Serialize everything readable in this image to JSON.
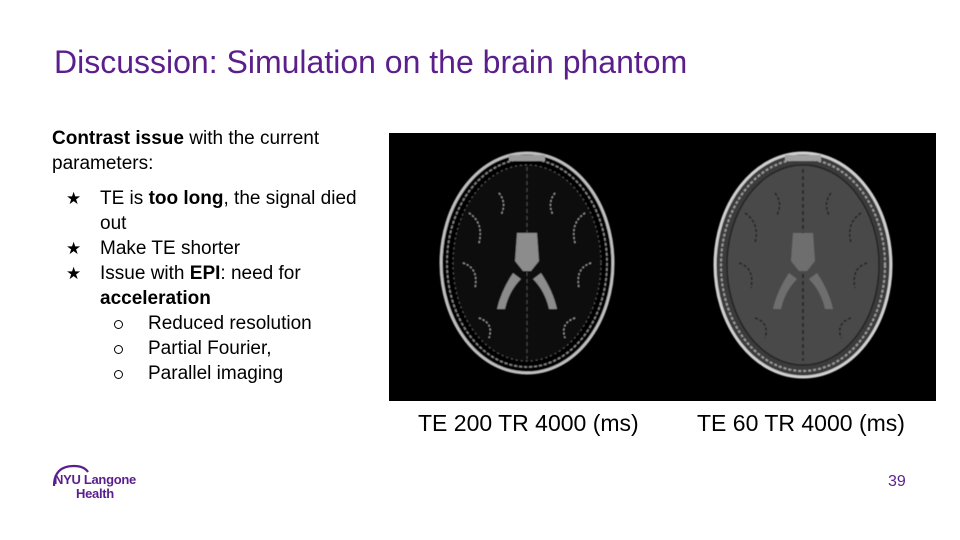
{
  "slide": {
    "title": "Discussion: Simulation on the brain phantom",
    "page_number": "39"
  },
  "content": {
    "intro_bold": "Contrast issue",
    "intro_rest": " with the current parameters:",
    "bullets": [
      {
        "pre": "TE is ",
        "bold": "too long",
        "post": ", the signal died out"
      },
      {
        "pre": "Make TE shorter",
        "bold": "",
        "post": ""
      },
      {
        "pre": "Issue with ",
        "bold": "EPI",
        "post": ": need for ",
        "bold2": "acceleration"
      }
    ],
    "sub_bullets": [
      "Reduced resolution",
      "Partial Fourier,",
      "Parallel imaging"
    ]
  },
  "figure": {
    "caption_left": "TE 200 TR 4000 (ms)",
    "caption_right": "TE 60 TR 4000 (ms)"
  },
  "logo": {
    "line1": "NYU Langone",
    "line2": "Health"
  },
  "colors": {
    "accent": "#5b1f8c"
  }
}
